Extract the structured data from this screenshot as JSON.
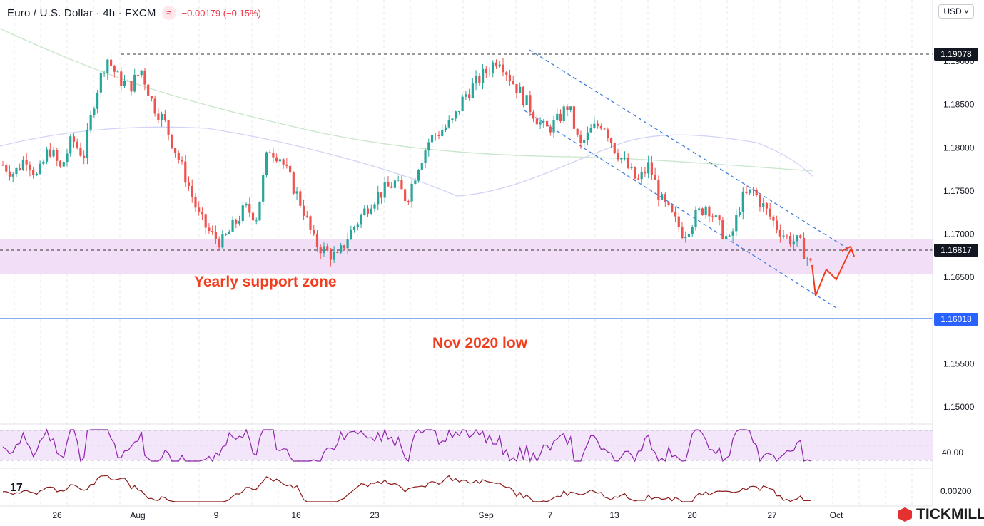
{
  "header": {
    "symbol": "Euro / U.S. Dollar · 4h · FXCM",
    "change": "−0.00179 (−0.15%)",
    "badge": "≈"
  },
  "currency_button": "USD ˅",
  "annotations": {
    "support": "Yearly support zone",
    "low": "Nov 2020 low"
  },
  "price_tags": {
    "top_level": "1.19078",
    "current": "1.16817",
    "nov_low": "1.16018"
  },
  "rsi_label": "40.00",
  "macd_label": "0.00200",
  "brand": "TICKMILL",
  "colors": {
    "up": "#26a69a",
    "down": "#ef5350",
    "support_zone": "#f2def7",
    "channel": "#3d7de0",
    "nov_low_line": "#3d7de0",
    "annotation": "#f23d1e",
    "rsi": "#8e24aa",
    "macd": "#8b1a1a"
  },
  "chart_data": {
    "type": "candlestick",
    "y_ticks": [
      "1.19000",
      "1.18500",
      "1.18000",
      "1.17500",
      "1.17000",
      "1.16500",
      "1.15500",
      "1.15000"
    ],
    "x_ticks": [
      "26",
      "Aug",
      "9",
      "16",
      "23",
      "Sep",
      "7",
      "13",
      "20",
      "27",
      "Oct"
    ],
    "horizontal_levels": [
      1.19078,
      1.16817,
      1.16018
    ],
    "support_zone": [
      1.1655,
      1.1694
    ],
    "close_path": [
      1.178,
      1.177,
      1.179,
      1.1765,
      1.18,
      1.1775,
      1.181,
      1.179,
      1.186,
      1.1905,
      1.188,
      1.187,
      1.189,
      1.185,
      1.183,
      1.1795,
      1.176,
      1.172,
      1.17,
      1.169,
      1.171,
      1.173,
      1.172,
      1.18,
      1.179,
      1.176,
      1.173,
      1.169,
      1.168,
      1.1672,
      1.17,
      1.172,
      1.174,
      1.175,
      1.176,
      1.174,
      1.178,
      1.181,
      1.182,
      1.183,
      1.186,
      1.1875,
      1.189,
      1.1905,
      1.188,
      1.186,
      1.184,
      1.182,
      1.183,
      1.185,
      1.18,
      1.182,
      1.183,
      1.18,
      1.178,
      1.176,
      1.178,
      1.174,
      1.172,
      1.17,
      1.172,
      1.1735,
      1.171,
      1.169,
      1.174,
      1.175,
      1.173,
      1.171,
      1.1695,
      1.169,
      1.1665
    ],
    "projection": [
      1.163,
      1.166,
      1.165,
      1.1682
    ]
  }
}
